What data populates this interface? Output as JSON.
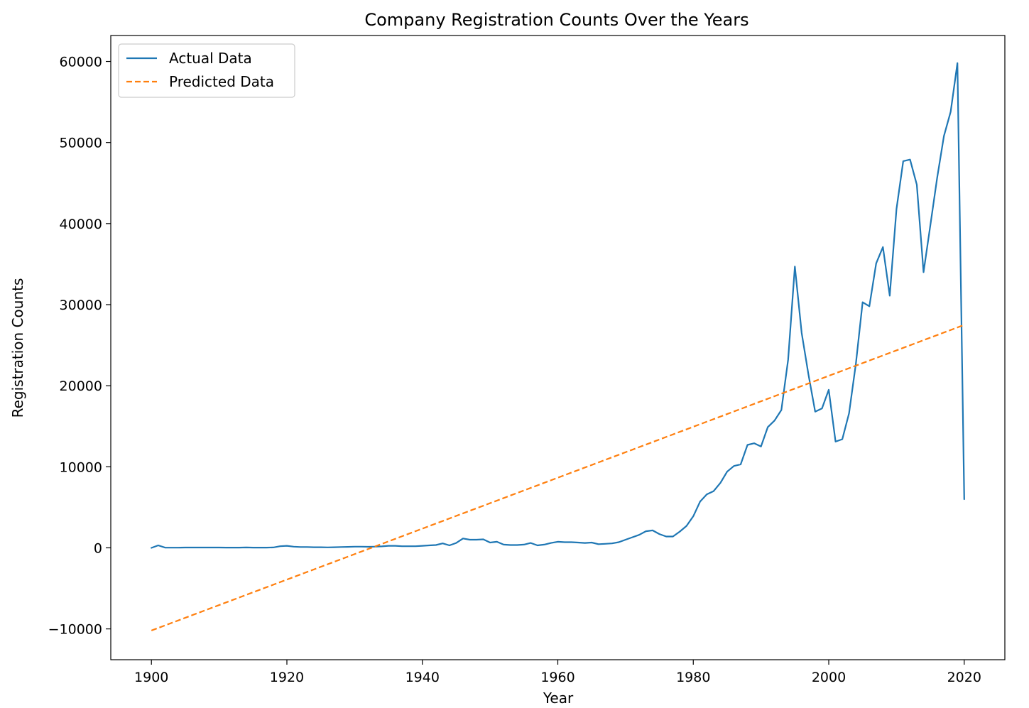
{
  "chart_data": {
    "type": "line",
    "title": "Company Registration Counts Over the Years",
    "xlabel": "Year",
    "ylabel": "Registration Counts",
    "xlim": [
      1894,
      2026
    ],
    "ylim": [
      -13800,
      63200
    ],
    "xticks": [
      1900,
      1920,
      1940,
      1960,
      1980,
      2000,
      2020
    ],
    "yticks": [
      -10000,
      0,
      10000,
      20000,
      30000,
      40000,
      50000,
      60000
    ],
    "xtick_labels": [
      "1900",
      "1920",
      "1940",
      "1960",
      "1980",
      "2000",
      "2020"
    ],
    "ytick_labels": [
      "−10000",
      "0",
      "10000",
      "20000",
      "30000",
      "40000",
      "50000",
      "60000"
    ],
    "grid": false,
    "legend_position": "top-left",
    "series": [
      {
        "name": "Actual Data",
        "color": "#1f77b4",
        "style": "solid",
        "x": [
          1900,
          1901,
          1902,
          1903,
          1904,
          1905,
          1906,
          1907,
          1908,
          1909,
          1910,
          1911,
          1912,
          1913,
          1914,
          1915,
          1916,
          1917,
          1918,
          1919,
          1920,
          1921,
          1922,
          1923,
          1924,
          1925,
          1926,
          1927,
          1928,
          1929,
          1930,
          1931,
          1932,
          1933,
          1934,
          1935,
          1936,
          1937,
          1938,
          1939,
          1940,
          1941,
          1942,
          1943,
          1944,
          1945,
          1946,
          1947,
          1948,
          1949,
          1950,
          1951,
          1952,
          1953,
          1954,
          1955,
          1956,
          1957,
          1958,
          1959,
          1960,
          1961,
          1962,
          1963,
          1964,
          1965,
          1966,
          1967,
          1968,
          1969,
          1970,
          1971,
          1972,
          1973,
          1974,
          1975,
          1976,
          1977,
          1978,
          1979,
          1980,
          1981,
          1982,
          1983,
          1984,
          1985,
          1986,
          1987,
          1988,
          1989,
          1990,
          1991,
          1992,
          1993,
          1994,
          1995,
          1996,
          1997,
          1998,
          1999,
          2000,
          2001,
          2002,
          2003,
          2004,
          2005,
          2006,
          2007,
          2008,
          2009,
          2010,
          2011,
          2012,
          2013,
          2014,
          2015,
          2016,
          2017,
          2018,
          2019,
          2020
        ],
        "values": [
          0,
          300,
          30,
          20,
          20,
          40,
          40,
          40,
          40,
          40,
          40,
          30,
          30,
          30,
          50,
          30,
          30,
          30,
          50,
          200,
          250,
          150,
          100,
          100,
          80,
          80,
          60,
          80,
          100,
          120,
          150,
          150,
          130,
          150,
          180,
          250,
          250,
          200,
          200,
          200,
          250,
          300,
          350,
          550,
          300,
          600,
          1150,
          1000,
          1000,
          1050,
          650,
          750,
          400,
          350,
          350,
          400,
          600,
          300,
          400,
          600,
          750,
          700,
          700,
          650,
          600,
          650,
          450,
          500,
          550,
          700,
          1000,
          1300,
          1600,
          2050,
          2150,
          1700,
          1400,
          1400,
          2000,
          2700,
          3900,
          5700,
          6600,
          7000,
          8000,
          9400,
          10100,
          10300,
          12700,
          12900,
          12500,
          14900,
          15700,
          17000,
          23200,
          34700,
          26500,
          21400,
          16800,
          17200,
          19500,
          13100,
          13400,
          16600,
          22700,
          30300,
          29800,
          35100,
          37100,
          31100,
          41800,
          47700,
          47900,
          44800,
          34000,
          39800,
          45600,
          50800,
          53800,
          59800,
          6000
        ]
      },
      {
        "name": "Predicted Data",
        "color": "#ff7f0e",
        "style": "dashed",
        "x": [
          1900,
          2020
        ],
        "values": [
          -10200,
          27500
        ]
      }
    ]
  }
}
